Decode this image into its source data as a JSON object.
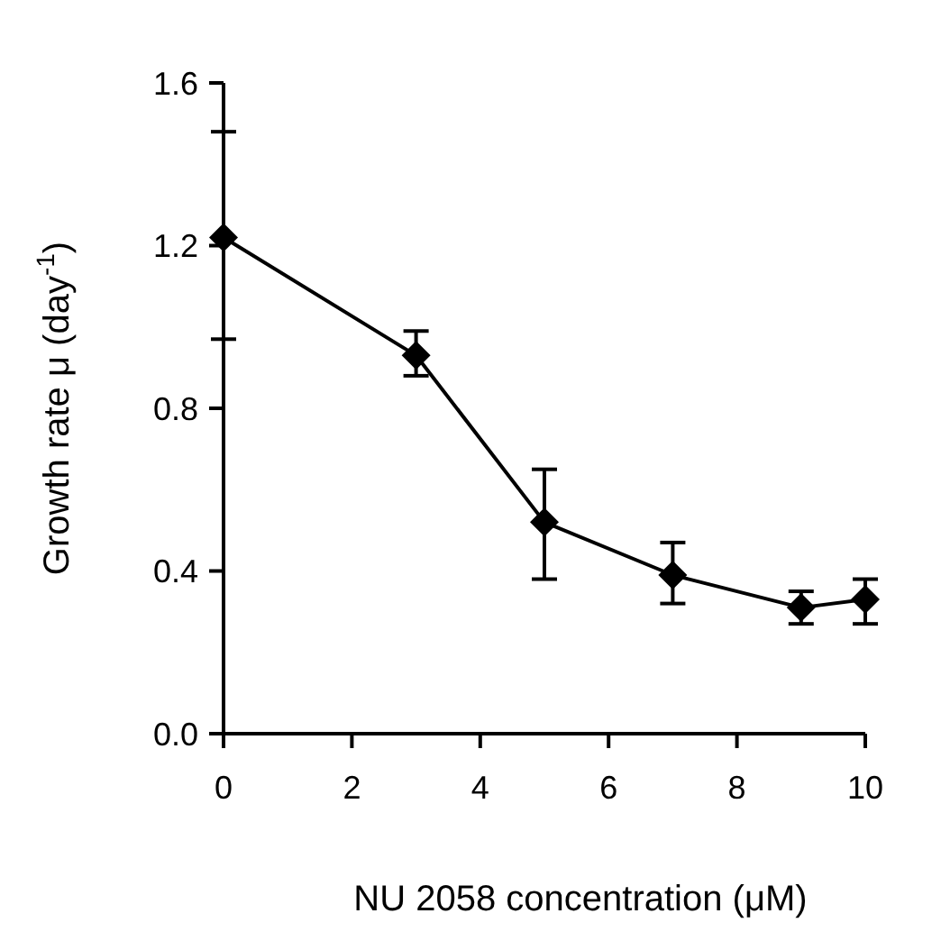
{
  "chart_data": {
    "type": "line",
    "xlabel": "NU 2058 concentration (μM)",
    "ylabel": "Growth rate μ (day$^{-1}$)",
    "x": [
      0,
      3,
      5,
      7,
      9,
      10
    ],
    "values": [
      1.22,
      0.93,
      0.52,
      0.39,
      0.31,
      0.33
    ],
    "errors": [
      [
        0.97,
        1.48
      ],
      [
        0.88,
        0.99
      ],
      [
        0.38,
        0.65
      ],
      [
        0.32,
        0.47
      ],
      [
        0.27,
        0.35
      ],
      [
        0.27,
        0.38
      ]
    ],
    "color": "#000000",
    "marker": "diamond",
    "line_style": "solid",
    "xlim": [
      0,
      10
    ],
    "xticks": [
      0,
      2,
      4,
      6,
      8,
      10
    ],
    "ylim": [
      0,
      1.6
    ],
    "yticks": [
      {
        "value": 0,
        "label": "0.0"
      },
      {
        "value": 0.4,
        "label": "0.4"
      },
      {
        "value": 0.8,
        "label": "0.8"
      },
      {
        "value": 1.2,
        "label": "1.2"
      },
      {
        "value": 1.6,
        "label": "1.6"
      }
    ],
    "grid": false
  }
}
